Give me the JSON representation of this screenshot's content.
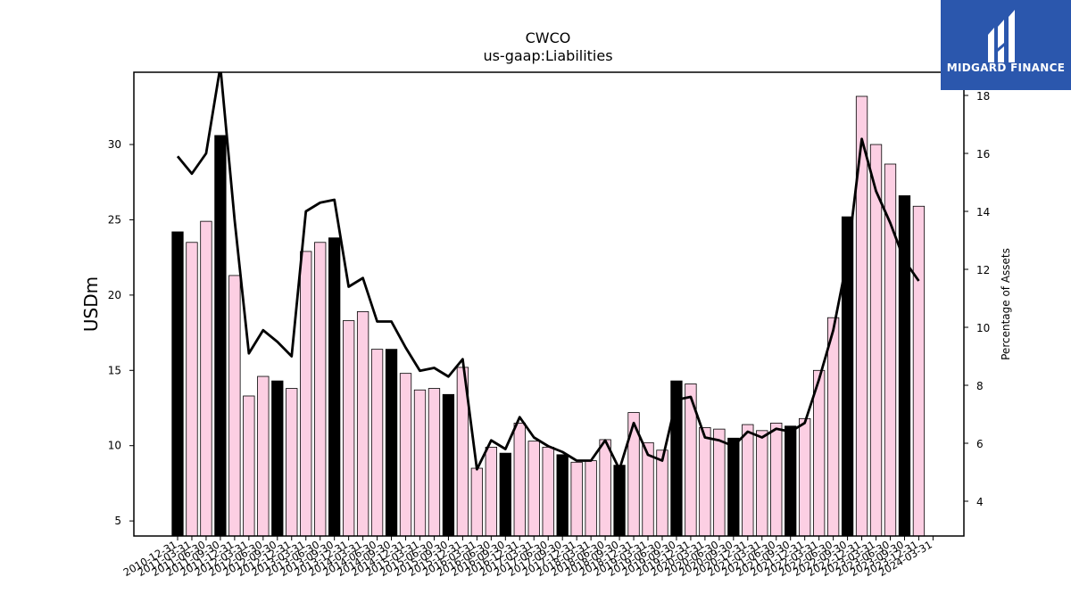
{
  "chart_data": {
    "type": "bar",
    "title": "CWCO",
    "subtitle": "us-gaap:Liabilities",
    "ylabel": "USDm",
    "y2label": "Percentage of Assets",
    "ylim": [
      4.0,
      34.8
    ],
    "y2lim": [
      2.8,
      18.8
    ],
    "yticks": [
      5,
      10,
      15,
      20,
      25,
      30
    ],
    "y2ticks": [
      4,
      6,
      8,
      10,
      12,
      14,
      16,
      18
    ],
    "grid": false,
    "colors": {
      "annual_bar": "#000000",
      "quarter_bar": "#fccfe3",
      "line": "#000000"
    },
    "categories": [
      "2010-12-31",
      "2011-03-31",
      "2011-06-30",
      "2011-09-30",
      "2011-12-31",
      "2012-03-31",
      "2012-06-30",
      "2012-09-30",
      "2012-12-31",
      "2013-03-31",
      "2013-06-30",
      "2013-09-30",
      "2013-12-31",
      "2014-03-31",
      "2014-06-30",
      "2014-09-30",
      "2014-12-31",
      "2015-03-31",
      "2015-06-30",
      "2015-09-30",
      "2015-12-31",
      "2016-03-31",
      "2016-06-30",
      "2016-09-30",
      "2016-12-31",
      "2017-03-31",
      "2017-06-30",
      "2017-09-30",
      "2017-12-31",
      "2018-03-31",
      "2018-06-30",
      "2018-09-30",
      "2018-12-31",
      "2019-03-31",
      "2019-06-30",
      "2019-09-30",
      "2019-12-31",
      "2020-03-31",
      "2020-06-30",
      "2020-09-30",
      "2020-12-31",
      "2021-03-31",
      "2021-06-30",
      "2021-09-30",
      "2021-12-31",
      "2022-03-31",
      "2022-06-30",
      "2022-09-30",
      "2022-12-31",
      "2023-03-31",
      "2023-06-30",
      "2023-09-30",
      "2023-12-31",
      "2024-03-31"
    ],
    "xtick_labels": [
      "2010-12-31",
      "2011-03-31",
      "2011-06-30",
      "2011-09-30",
      "2011-12-31",
      "2012-03-31",
      "2012-06-30",
      "2012-09-30",
      "2012-12-31",
      "2013-03-31",
      "2013-06-30",
      "2013-09-30",
      "2013-12-31",
      "2014-03-31",
      "2014-06-30",
      "2014-09-30",
      "2014-12-31",
      "2015-03-31",
      "2015-06-30",
      "2015-09-30",
      "2015-12-31",
      "2016-03-31",
      "2016-06-30",
      "2016-09-30",
      "2016-12-31",
      "2017-03-31",
      "2017-06-30",
      "2017-09-30",
      "2017-12-31",
      "2018-03-31",
      "2018-06-30",
      "2018-09-30",
      "2018-12-31",
      "2019-03-31",
      "2019-06-30",
      "2019-09-30",
      "2019-12-31",
      "2020-03-31",
      "2020-06-30",
      "2020-09-30",
      "2020-12-31",
      "2021-03-31",
      "2021-06-30",
      "2021-09-30",
      "2021-12-31",
      "2022-03-31",
      "2022-06-30",
      "2022-09-30",
      "2022-12-31",
      "2023-03-31",
      "2023-06-30",
      "2023-09-30",
      "2023-12-31",
      "2024-03-31"
    ],
    "series": [
      {
        "type": "bar",
        "axis": "left",
        "values": [
          24.2,
          23.5,
          24.9,
          30.6,
          21.3,
          13.3,
          14.6,
          14.3,
          13.8,
          22.9,
          23.5,
          23.8,
          18.3,
          18.9,
          16.4,
          16.4,
          14.8,
          13.7,
          13.8,
          13.4,
          15.2,
          8.5,
          9.9,
          9.5,
          11.5,
          10.3,
          9.9,
          9.4,
          8.9,
          9.0,
          10.4,
          8.7,
          12.2,
          10.2,
          9.7,
          14.3,
          14.1,
          11.2,
          11.1,
          10.5,
          11.4,
          11.0,
          11.5,
          11.3,
          11.8,
          15.0,
          18.5,
          25.2,
          33.2,
          30.0,
          28.7,
          26.6,
          25.9,
          null
        ],
        "annual": [
          true,
          false,
          false,
          true,
          false,
          false,
          false,
          true,
          false,
          false,
          false,
          true,
          false,
          false,
          false,
          true,
          false,
          false,
          false,
          true,
          false,
          false,
          false,
          true,
          false,
          false,
          false,
          true,
          false,
          false,
          false,
          true,
          false,
          false,
          false,
          true,
          false,
          false,
          false,
          true,
          false,
          false,
          false,
          true,
          false,
          false,
          false,
          true,
          false,
          false,
          false,
          true,
          false,
          false
        ]
      },
      {
        "type": "line",
        "axis": "right",
        "values": [
          15.9,
          15.3,
          16.0,
          19.0,
          13.7,
          9.1,
          9.9,
          9.5,
          9.0,
          14.0,
          14.3,
          14.4,
          11.4,
          11.7,
          10.2,
          10.2,
          9.3,
          8.5,
          8.6,
          8.3,
          8.9,
          5.1,
          6.1,
          5.8,
          6.9,
          6.2,
          5.9,
          5.7,
          5.4,
          5.4,
          6.1,
          5.1,
          6.7,
          5.6,
          5.4,
          7.5,
          7.6,
          6.2,
          6.1,
          5.9,
          6.4,
          6.2,
          6.5,
          6.4,
          6.7,
          8.2,
          9.9,
          12.4,
          16.5,
          14.7,
          13.6,
          12.3,
          11.6,
          null
        ]
      }
    ]
  },
  "logo": {
    "text": "MIDGARD FINANCE"
  }
}
